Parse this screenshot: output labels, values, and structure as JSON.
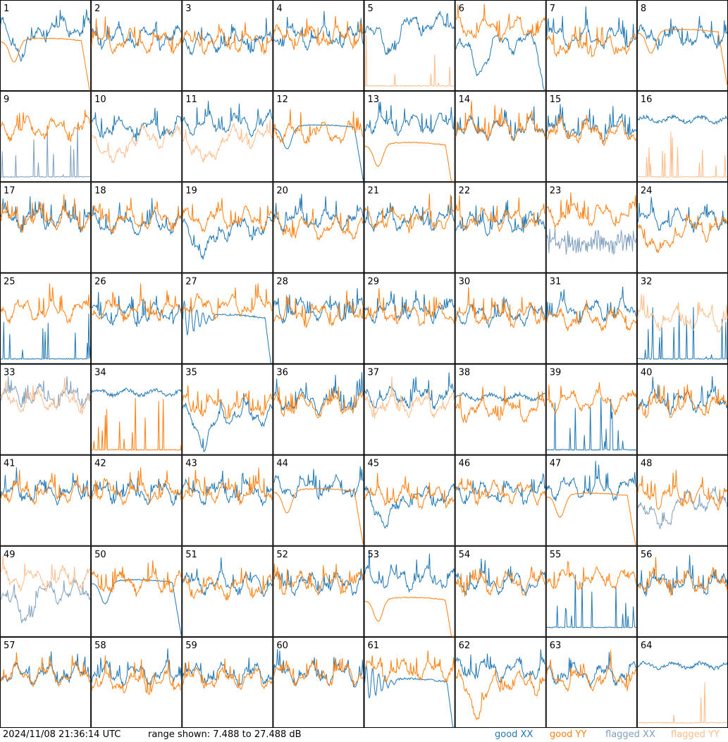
{
  "footer": {
    "timestamp": "2024/11/08 21:36:14 UTC",
    "range_text": "range shown: 7.488 to 27.488 dB",
    "legend": {
      "good_xx": "good XX",
      "good_yy": "good YY",
      "flagged_xx": "flagged XX",
      "flagged_yy": "flagged YY"
    }
  },
  "colors": {
    "good_xx": "#1f77b4",
    "good_yy": "#ff7f0e",
    "flagged_xx": "#7f9fbf",
    "flagged_yy": "#ffbb88",
    "frame": "#000000",
    "background": "#ffffff"
  },
  "chart_data": {
    "type": "line",
    "layout": "8x8 small multiples of antenna spectra",
    "y_range_db": [
      7.488,
      27.488
    ],
    "series_names": [
      "good XX",
      "good YY",
      "flagged XX",
      "flagged YY"
    ],
    "panels": [
      {
        "id": 1,
        "xx": "good",
        "yy": "good",
        "xx_shape": "dip",
        "yy_shape": "smooth_bump_dropoff",
        "xx_level": 0.7,
        "yy_level": 0.55
      },
      {
        "id": 2,
        "xx": "good",
        "yy": "good",
        "xx_shape": "normal",
        "yy_shape": "normal",
        "xx_level": 0.6,
        "yy_level": 0.55
      },
      {
        "id": 3,
        "xx": "good",
        "yy": "good",
        "xx_shape": "normal",
        "yy_shape": "normal",
        "xx_level": 0.55,
        "yy_level": 0.55
      },
      {
        "id": 4,
        "xx": "good",
        "yy": "good",
        "xx_shape": "normal",
        "yy_shape": "normal",
        "xx_level": 0.6,
        "yy_level": 0.6
      },
      {
        "id": 5,
        "xx": "good",
        "yy": "flagged",
        "xx_shape": "dip",
        "yy_shape": "spikes_low",
        "xx_level": 0.75,
        "yy_level": 0.05
      },
      {
        "id": 6,
        "xx": "good",
        "yy": "good",
        "xx_shape": "dip_dropoff",
        "yy_shape": "normal",
        "xx_level": 0.55,
        "yy_level": 0.7
      },
      {
        "id": 7,
        "xx": "good",
        "yy": "good",
        "xx_shape": "normal",
        "yy_shape": "normal",
        "xx_level": 0.6,
        "yy_level": 0.5
      },
      {
        "id": 8,
        "xx": "good",
        "yy": "good",
        "xx_shape": "normal",
        "yy_shape": "smooth_bump_dropoff",
        "xx_level": 0.6,
        "yy_level": 0.65
      },
      {
        "id": 9,
        "xx": "flagged",
        "yy": "good",
        "xx_shape": "spikes_low",
        "yy_shape": "normal",
        "xx_level": 0.05,
        "yy_level": 0.6
      },
      {
        "id": 10,
        "xx": "good",
        "yy": "flagged",
        "xx_shape": "normal",
        "yy_shape": "dip",
        "xx_level": 0.6,
        "yy_level": 0.5
      },
      {
        "id": 11,
        "xx": "good",
        "yy": "flagged",
        "xx_shape": "normal",
        "yy_shape": "dip",
        "xx_level": 0.65,
        "yy_level": 0.5
      },
      {
        "id": 12,
        "xx": "good",
        "yy": "good",
        "xx_shape": "smooth_bump_dropoff",
        "yy_shape": "normal",
        "xx_level": 0.6,
        "yy_level": 0.55
      },
      {
        "id": 13,
        "xx": "good",
        "yy": "good",
        "xx_shape": "normal",
        "yy_shape": "smooth_bump_dropoff",
        "xx_level": 0.65,
        "yy_level": 0.4
      },
      {
        "id": 14,
        "xx": "good",
        "yy": "good",
        "xx_shape": "normal",
        "yy_shape": "normal",
        "xx_level": 0.6,
        "yy_level": 0.6
      },
      {
        "id": 15,
        "xx": "good",
        "yy": "good",
        "xx_shape": "normal",
        "yy_shape": "normal",
        "xx_level": 0.6,
        "yy_level": 0.55
      },
      {
        "id": 16,
        "xx": "good",
        "yy": "flagged",
        "xx_shape": "flat_high",
        "yy_shape": "spikes_low",
        "xx_level": 0.7,
        "yy_level": 0.05
      },
      {
        "id": 17,
        "xx": "good",
        "yy": "good",
        "xx_shape": "normal",
        "yy_shape": "normal",
        "xx_level": 0.6,
        "yy_level": 0.6
      },
      {
        "id": 18,
        "xx": "good",
        "yy": "good",
        "xx_shape": "normal",
        "yy_shape": "normal",
        "xx_level": 0.55,
        "yy_level": 0.6
      },
      {
        "id": 19,
        "xx": "good",
        "yy": "good",
        "xx_shape": "dip",
        "yy_shape": "normal",
        "xx_level": 0.5,
        "yy_level": 0.6
      },
      {
        "id": 20,
        "xx": "good",
        "yy": "good",
        "xx_shape": "normal",
        "yy_shape": "normal",
        "xx_level": 0.6,
        "yy_level": 0.5
      },
      {
        "id": 21,
        "xx": "good",
        "yy": "good",
        "xx_shape": "normal",
        "yy_shape": "normal",
        "xx_level": 0.6,
        "yy_level": 0.6
      },
      {
        "id": 22,
        "xx": "good",
        "yy": "good",
        "xx_shape": "normal",
        "yy_shape": "normal",
        "xx_level": 0.55,
        "yy_level": 0.6
      },
      {
        "id": 23,
        "xx": "flagged",
        "yy": "good",
        "xx_shape": "noisy_mid",
        "yy_shape": "normal",
        "xx_level": 0.35,
        "yy_level": 0.65
      },
      {
        "id": 24,
        "xx": "good",
        "yy": "good",
        "xx_shape": "normal",
        "yy_shape": "dip",
        "xx_level": 0.6,
        "yy_level": 0.5
      },
      {
        "id": 25,
        "xx": "good",
        "yy": "good",
        "xx_shape": "spikes_low",
        "yy_shape": "normal",
        "xx_level": 0.05,
        "yy_level": 0.6
      },
      {
        "id": 26,
        "xx": "good",
        "yy": "good",
        "xx_shape": "normal",
        "yy_shape": "normal",
        "xx_level": 0.55,
        "yy_level": 0.6
      },
      {
        "id": 27,
        "xx": "good",
        "yy": "good",
        "xx_shape": "oscillate_dropoff",
        "yy_shape": "normal",
        "xx_level": 0.5,
        "yy_level": 0.65
      },
      {
        "id": 28,
        "xx": "good",
        "yy": "good",
        "xx_shape": "normal",
        "yy_shape": "normal",
        "xx_level": 0.6,
        "yy_level": 0.55
      },
      {
        "id": 29,
        "xx": "good",
        "yy": "good",
        "xx_shape": "normal",
        "yy_shape": "normal",
        "xx_level": 0.6,
        "yy_level": 0.55
      },
      {
        "id": 30,
        "xx": "good",
        "yy": "good",
        "xx_shape": "normal",
        "yy_shape": "normal",
        "xx_level": 0.55,
        "yy_level": 0.55
      },
      {
        "id": 31,
        "xx": "good",
        "yy": "good",
        "xx_shape": "normal",
        "yy_shape": "normal",
        "xx_level": 0.6,
        "yy_level": 0.5
      },
      {
        "id": 32,
        "xx": "good",
        "yy": "flagged",
        "xx_shape": "spikes_low",
        "yy_shape": "normal",
        "xx_level": 0.05,
        "yy_level": 0.5
      },
      {
        "id": 33,
        "xx": "flagged",
        "yy": "flagged",
        "xx_shape": "normal",
        "yy_shape": "normal",
        "xx_level": 0.65,
        "yy_level": 0.6
      },
      {
        "id": 34,
        "xx": "good",
        "yy": "good",
        "xx_shape": "flat_high",
        "yy_shape": "spikes_low",
        "xx_level": 0.7,
        "yy_level": 0.05
      },
      {
        "id": 35,
        "xx": "good",
        "yy": "good",
        "xx_shape": "dip",
        "yy_shape": "normal",
        "xx_level": 0.45,
        "yy_level": 0.55
      },
      {
        "id": 36,
        "xx": "good",
        "yy": "good",
        "xx_shape": "normal",
        "yy_shape": "normal",
        "xx_level": 0.6,
        "yy_level": 0.55
      },
      {
        "id": 37,
        "xx": "good",
        "yy": "flagged",
        "xx_shape": "normal",
        "yy_shape": "normal",
        "xx_level": 0.65,
        "yy_level": 0.55
      },
      {
        "id": 38,
        "xx": "good",
        "yy": "good",
        "xx_shape": "flat_high",
        "yy_shape": "normal",
        "xx_level": 0.65,
        "yy_level": 0.5
      },
      {
        "id": 39,
        "xx": "good",
        "yy": "good",
        "xx_shape": "spikes_low",
        "yy_shape": "normal",
        "xx_level": 0.05,
        "yy_level": 0.6
      },
      {
        "id": 40,
        "xx": "good",
        "yy": "good",
        "xx_shape": "normal",
        "yy_shape": "normal",
        "xx_level": 0.6,
        "yy_level": 0.55
      },
      {
        "id": 41,
        "xx": "good",
        "yy": "good",
        "xx_shape": "normal",
        "yy_shape": "normal",
        "xx_level": 0.6,
        "yy_level": 0.6
      },
      {
        "id": 42,
        "xx": "good",
        "yy": "good",
        "xx_shape": "normal",
        "yy_shape": "normal",
        "xx_level": 0.6,
        "yy_level": 0.6
      },
      {
        "id": 43,
        "xx": "good",
        "yy": "good",
        "xx_shape": "normal",
        "yy_shape": "normal",
        "xx_level": 0.6,
        "yy_level": 0.6
      },
      {
        "id": 44,
        "xx": "good",
        "yy": "good",
        "xx_shape": "normal",
        "yy_shape": "smooth_bump_dropoff",
        "xx_level": 0.65,
        "yy_level": 0.6
      },
      {
        "id": 45,
        "xx": "good",
        "yy": "good",
        "xx_shape": "dip",
        "yy_shape": "normal",
        "xx_level": 0.55,
        "yy_level": 0.55
      },
      {
        "id": 46,
        "xx": "good",
        "yy": "good",
        "xx_shape": "normal",
        "yy_shape": "normal",
        "xx_level": 0.6,
        "yy_level": 0.6
      },
      {
        "id": 47,
        "xx": "good",
        "yy": "good",
        "xx_shape": "normal",
        "yy_shape": "smooth_bump_dropoff",
        "xx_level": 0.65,
        "yy_level": 0.55
      },
      {
        "id": 48,
        "xx": "flagged",
        "yy": "good",
        "xx_shape": "dip",
        "yy_shape": "normal",
        "xx_level": 0.5,
        "yy_level": 0.55
      },
      {
        "id": 49,
        "xx": "flagged",
        "yy": "flagged",
        "xx_shape": "dip",
        "yy_shape": "normal",
        "xx_level": 0.5,
        "yy_level": 0.65
      },
      {
        "id": 50,
        "xx": "good",
        "yy": "good",
        "xx_shape": "smooth_bump_dropoff",
        "yy_shape": "normal",
        "xx_level": 0.6,
        "yy_level": 0.6
      },
      {
        "id": 51,
        "xx": "good",
        "yy": "good",
        "xx_shape": "normal",
        "yy_shape": "normal",
        "xx_level": 0.6,
        "yy_level": 0.55
      },
      {
        "id": 52,
        "xx": "good",
        "yy": "good",
        "xx_shape": "normal",
        "yy_shape": "normal",
        "xx_level": 0.6,
        "yy_level": 0.6
      },
      {
        "id": 53,
        "xx": "good",
        "yy": "good",
        "xx_shape": "normal",
        "yy_shape": "smooth_bump_dropoff",
        "xx_level": 0.65,
        "yy_level": 0.4
      },
      {
        "id": 54,
        "xx": "good",
        "yy": "good",
        "xx_shape": "normal",
        "yy_shape": "normal",
        "xx_level": 0.6,
        "yy_level": 0.6
      },
      {
        "id": 55,
        "xx": "good",
        "yy": "good",
        "xx_shape": "spikes_low",
        "yy_shape": "normal",
        "xx_level": 0.1,
        "yy_level": 0.65
      },
      {
        "id": 56,
        "xx": "good",
        "yy": "good",
        "xx_shape": "normal",
        "yy_shape": "normal",
        "xx_level": 0.6,
        "yy_level": 0.6
      },
      {
        "id": 57,
        "xx": "good",
        "yy": "good",
        "xx_shape": "normal",
        "yy_shape": "normal",
        "xx_level": 0.6,
        "yy_level": 0.6
      },
      {
        "id": 58,
        "xx": "good",
        "yy": "good",
        "xx_shape": "normal",
        "yy_shape": "normal",
        "xx_level": 0.6,
        "yy_level": 0.5
      },
      {
        "id": 59,
        "xx": "good",
        "yy": "good",
        "xx_shape": "normal",
        "yy_shape": "normal",
        "xx_level": 0.6,
        "yy_level": 0.55
      },
      {
        "id": 60,
        "xx": "good",
        "yy": "good",
        "xx_shape": "normal",
        "yy_shape": "normal",
        "xx_level": 0.6,
        "yy_level": 0.6
      },
      {
        "id": 61,
        "xx": "good",
        "yy": "good",
        "xx_shape": "oscillate_dropoff",
        "yy_shape": "normal",
        "xx_level": 0.5,
        "yy_level": 0.65
      },
      {
        "id": 62,
        "xx": "good",
        "yy": "good",
        "xx_shape": "normal",
        "yy_shape": "dip",
        "xx_level": 0.65,
        "yy_level": 0.5
      },
      {
        "id": 63,
        "xx": "good",
        "yy": "good",
        "xx_shape": "normal",
        "yy_shape": "normal",
        "xx_level": 0.6,
        "yy_level": 0.55
      },
      {
        "id": 64,
        "xx": "good",
        "yy": "flagged",
        "xx_shape": "flat_high",
        "yy_shape": "spikes_low",
        "xx_level": 0.7,
        "yy_level": 0.05
      }
    ]
  }
}
